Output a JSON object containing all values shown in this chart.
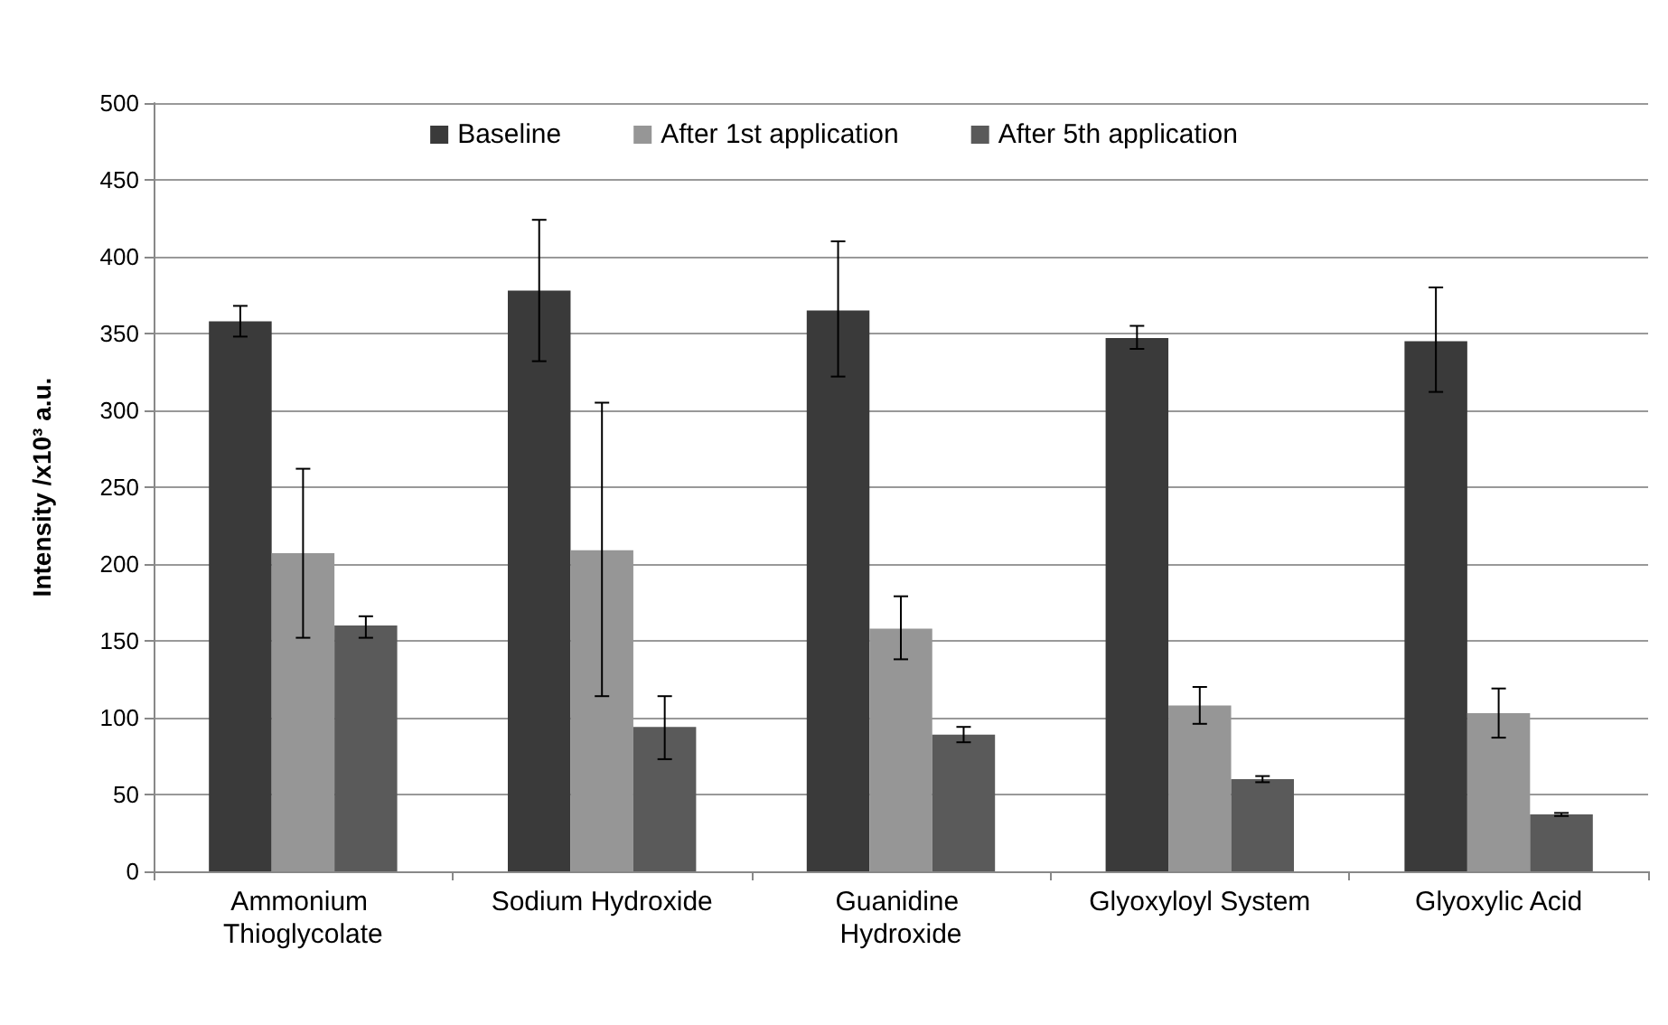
{
  "chart_data": {
    "type": "bar",
    "ylabel": "Intensity /x10³ a.u.",
    "categories": [
      "Ammonium Thioglycolate",
      "Sodium Hydroxide",
      "Guanidine Hydroxide",
      "Glyoxyloyl System",
      "Glyoxylic Acid"
    ],
    "series": [
      {
        "name": "Baseline",
        "color": "#3a3a3a",
        "values": [
          358,
          378,
          365,
          347,
          345
        ],
        "errors": [
          [
            348,
            368
          ],
          [
            332,
            424
          ],
          [
            322,
            410
          ],
          [
            340,
            355
          ],
          [
            312,
            380
          ]
        ]
      },
      {
        "name": "After 1st application",
        "color": "#969696",
        "values": [
          207,
          209,
          158,
          108,
          103
        ],
        "errors": [
          [
            152,
            262
          ],
          [
            114,
            305
          ],
          [
            138,
            179
          ],
          [
            96,
            120
          ],
          [
            87,
            119
          ]
        ]
      },
      {
        "name": "After 5th application",
        "color": "#5a5a5a",
        "values": [
          160,
          94,
          89,
          60,
          37
        ],
        "errors": [
          [
            152,
            166
          ],
          [
            73,
            114
          ],
          [
            84,
            94
          ],
          [
            58,
            62
          ],
          [
            36,
            38
          ]
        ]
      }
    ],
    "ylim": [
      0,
      500
    ],
    "yticks": [
      0,
      50,
      100,
      150,
      200,
      250,
      300,
      350,
      400,
      450,
      500
    ],
    "grid": "y",
    "legend": "top"
  }
}
